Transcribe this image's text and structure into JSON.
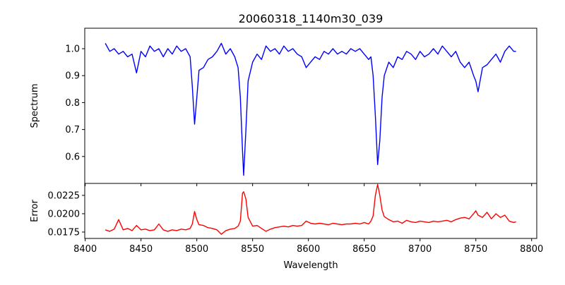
{
  "chart_data": [
    {
      "type": "line",
      "title": "20060318_1140m30_039",
      "xlabel": "",
      "ylabel": "Spectrum",
      "xlim": [
        8399.6,
        8804.6
      ],
      "ylim": [
        0.5,
        1.076
      ],
      "xticks": [
        8400,
        8450,
        8500,
        8550,
        8600,
        8650,
        8700,
        8750,
        8800
      ],
      "yticks": [
        0.6,
        0.7,
        0.8,
        0.9,
        1.0
      ],
      "ytick_labels": [
        "0.6",
        "0.7",
        "0.8",
        "0.9",
        "1.0"
      ],
      "color": "#0000ff",
      "series": [
        {
          "name": "Spectrum",
          "x": [
            8418,
            8422,
            8426,
            8430,
            8434,
            8438,
            8442,
            8446,
            8450,
            8454,
            8458,
            8462,
            8466,
            8470,
            8474,
            8478,
            8482,
            8486,
            8490,
            8494,
            8496,
            8498,
            8500,
            8502,
            8506,
            8510,
            8514,
            8518,
            8522,
            8526,
            8530,
            8534,
            8537,
            8539,
            8541,
            8542,
            8544,
            8546,
            8550,
            8554,
            8558,
            8562,
            8566,
            8570,
            8574,
            8578,
            8582,
            8586,
            8590,
            8594,
            8598,
            8602,
            8606,
            8610,
            8614,
            8618,
            8622,
            8626,
            8630,
            8634,
            8638,
            8642,
            8646,
            8650,
            8654,
            8656,
            8658,
            8660,
            8662,
            8664,
            8666,
            8668,
            8672,
            8676,
            8680,
            8684,
            8688,
            8692,
            8696,
            8700,
            8704,
            8708,
            8712,
            8716,
            8720,
            8724,
            8728,
            8732,
            8736,
            8740,
            8744,
            8748,
            8750,
            8752,
            8756,
            8760,
            8764,
            8768,
            8772,
            8776,
            8780,
            8784,
            8786
          ],
          "y": [
            1.02,
            0.99,
            1.0,
            0.98,
            0.99,
            0.97,
            0.98,
            0.91,
            0.99,
            0.97,
            1.01,
            0.99,
            1.0,
            0.97,
            1.0,
            0.98,
            1.01,
            0.99,
            1.0,
            0.97,
            0.86,
            0.72,
            0.82,
            0.92,
            0.93,
            0.96,
            0.97,
            0.99,
            1.02,
            0.98,
            1.0,
            0.97,
            0.93,
            0.82,
            0.62,
            0.53,
            0.7,
            0.88,
            0.95,
            0.98,
            0.96,
            1.01,
            0.99,
            1.0,
            0.98,
            1.01,
            0.99,
            1.0,
            0.98,
            0.97,
            0.93,
            0.95,
            0.97,
            0.96,
            0.99,
            0.98,
            1.0,
            0.98,
            0.99,
            0.98,
            1.0,
            0.99,
            1.0,
            0.98,
            0.96,
            0.97,
            0.9,
            0.75,
            0.57,
            0.66,
            0.82,
            0.9,
            0.95,
            0.93,
            0.97,
            0.96,
            0.99,
            0.98,
            0.96,
            0.99,
            0.97,
            0.98,
            1.0,
            0.98,
            1.01,
            0.99,
            0.97,
            0.99,
            0.95,
            0.93,
            0.95,
            0.9,
            0.88,
            0.84,
            0.93,
            0.94,
            0.96,
            0.98,
            0.95,
            0.99,
            1.01,
            0.99,
            0.99
          ]
        }
      ]
    },
    {
      "type": "line",
      "title": "",
      "xlabel": "Wavelength",
      "ylabel": "Error",
      "xlim": [
        8399.6,
        8804.6
      ],
      "ylim": [
        0.01663,
        0.02413
      ],
      "xticks": [
        8400,
        8450,
        8500,
        8550,
        8600,
        8650,
        8700,
        8750,
        8800
      ],
      "xtick_labels": [
        "8400",
        "8450",
        "8500",
        "8550",
        "8600",
        "8650",
        "8700",
        "8750",
        "8800"
      ],
      "yticks": [
        0.0175,
        0.02,
        0.0225
      ],
      "ytick_labels": [
        "0.0175",
        "0.0200",
        "0.0225"
      ],
      "color": "#ff0000",
      "series": [
        {
          "name": "Error",
          "x": [
            8418,
            8422,
            8426,
            8430,
            8434,
            8438,
            8442,
            8446,
            8450,
            8454,
            8458,
            8462,
            8466,
            8470,
            8474,
            8478,
            8482,
            8486,
            8490,
            8494,
            8496,
            8498,
            8500,
            8502,
            8506,
            8510,
            8514,
            8518,
            8522,
            8526,
            8530,
            8534,
            8537,
            8539,
            8541,
            8542,
            8544,
            8546,
            8550,
            8554,
            8558,
            8562,
            8566,
            8570,
            8574,
            8578,
            8582,
            8586,
            8590,
            8594,
            8598,
            8602,
            8606,
            8610,
            8614,
            8618,
            8622,
            8626,
            8630,
            8634,
            8638,
            8642,
            8646,
            8650,
            8654,
            8656,
            8658,
            8660,
            8662,
            8664,
            8666,
            8668,
            8672,
            8676,
            8680,
            8684,
            8688,
            8692,
            8696,
            8700,
            8704,
            8708,
            8712,
            8716,
            8720,
            8724,
            8728,
            8732,
            8736,
            8740,
            8744,
            8748,
            8750,
            8752,
            8756,
            8760,
            8764,
            8768,
            8772,
            8776,
            8780,
            8784,
            8786
          ],
          "y": [
            0.0178,
            0.0176,
            0.0179,
            0.0192,
            0.0178,
            0.018,
            0.0177,
            0.0184,
            0.0178,
            0.0179,
            0.0177,
            0.0178,
            0.0186,
            0.0178,
            0.0176,
            0.0178,
            0.0177,
            0.0179,
            0.0178,
            0.018,
            0.0186,
            0.0203,
            0.0192,
            0.0185,
            0.0184,
            0.0181,
            0.018,
            0.0178,
            0.0172,
            0.0177,
            0.0179,
            0.018,
            0.0183,
            0.019,
            0.0228,
            0.023,
            0.022,
            0.0195,
            0.0183,
            0.0184,
            0.018,
            0.0176,
            0.0179,
            0.0181,
            0.0182,
            0.0183,
            0.0182,
            0.0184,
            0.0183,
            0.0184,
            0.019,
            0.0187,
            0.0186,
            0.0187,
            0.0186,
            0.0185,
            0.0187,
            0.0186,
            0.0185,
            0.0186,
            0.0186,
            0.0187,
            0.0186,
            0.0188,
            0.0186,
            0.019,
            0.0197,
            0.0225,
            0.024,
            0.0225,
            0.0205,
            0.0196,
            0.0192,
            0.0189,
            0.019,
            0.0187,
            0.0191,
            0.0189,
            0.0188,
            0.019,
            0.0189,
            0.0188,
            0.019,
            0.0189,
            0.019,
            0.0191,
            0.0189,
            0.0192,
            0.0194,
            0.0195,
            0.0193,
            0.02,
            0.0204,
            0.0198,
            0.0195,
            0.0202,
            0.0193,
            0.02,
            0.0195,
            0.0198,
            0.019,
            0.0188,
            0.0189
          ]
        }
      ]
    }
  ]
}
